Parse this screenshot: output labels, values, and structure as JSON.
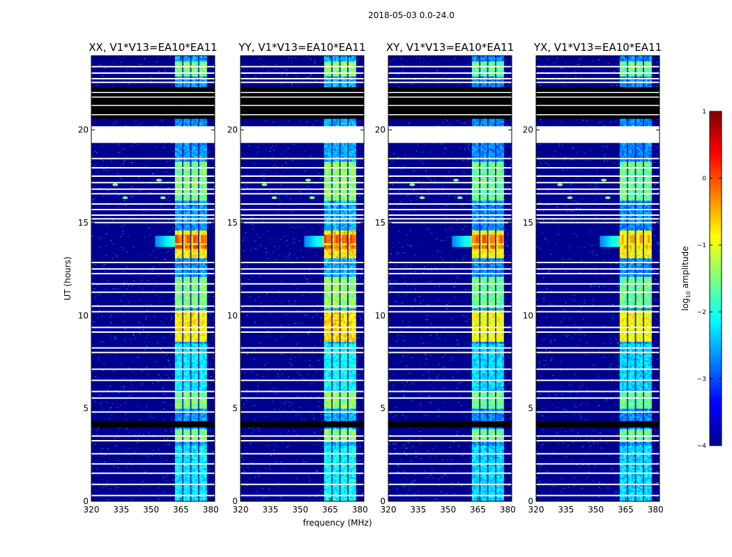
{
  "figure": {
    "suptitle": "2018-05-03 0.0-24.0",
    "xlabel": "frequency (MHz)",
    "ylabel": "UT (hours)"
  },
  "chart_data": {
    "type": "heatmap",
    "title": "2018-05-03 0.0-24.0",
    "xlabel": "frequency (MHz)",
    "ylabel": "UT (hours)",
    "xlim": [
      320,
      382
    ],
    "ylim": [
      0,
      24
    ],
    "xticks": [
      320,
      335,
      350,
      365,
      380
    ],
    "yticks": [
      0,
      5,
      10,
      15,
      20
    ],
    "panels": [
      {
        "title": "XX, V1*V13=EA10*EA11",
        "pol": "XX"
      },
      {
        "title": "YY, V1*V13=EA10*EA11",
        "pol": "YY"
      },
      {
        "title": "XY, V1*V13=EA10*EA11",
        "pol": "XY"
      },
      {
        "title": "YX, V1*V13=EA10*EA11",
        "pol": "YX"
      }
    ],
    "colorbar": {
      "label": "log10 amplitude",
      "label_main": "log",
      "label_sub": "10",
      "label_rest": " amplitude",
      "range": [
        -4,
        1
      ],
      "ticks": [
        1,
        0,
        -1,
        -2,
        -3,
        -4
      ],
      "tick_labels": [
        "1",
        "0",
        "−1",
        "−2",
        "−3",
        "−4"
      ],
      "colormap": "jet"
    },
    "rfi_band_mhz": [
      362,
      378
    ],
    "subband_gaps_mhz": [
      366,
      370,
      374
    ],
    "flagged_white_hours": [
      [
        19.3,
        20.2
      ]
    ],
    "flagged_black_hours": [
      [
        20.6,
        22.3
      ],
      [
        3.98,
        4.32
      ]
    ],
    "strong_rfi_hours": [
      [
        13.1,
        14.6
      ],
      [
        8.6,
        10.3
      ]
    ],
    "moderate_rfi_hours": [
      [
        5.0,
        5.9
      ],
      [
        3.2,
        3.9
      ],
      [
        22.9,
        23.7
      ],
      [
        16.2,
        18.3
      ],
      [
        10.4,
        12.1
      ]
    ],
    "weak_rfi_hours": [
      [
        0.0,
        3.0
      ],
      [
        6.0,
        8.5
      ]
    ],
    "transient_rfi": [
      {
        "freq_mhz": 337,
        "hour": 16.35
      },
      {
        "freq_mhz": 332,
        "hour": 17.05
      },
      {
        "freq_mhz": 354,
        "hour": 17.3
      },
      {
        "freq_mhz": 356,
        "hour": 16.35
      }
    ],
    "colors": {
      "background": "#00008f",
      "flag_white": "#ffffff",
      "flag_black": "#000000"
    }
  }
}
